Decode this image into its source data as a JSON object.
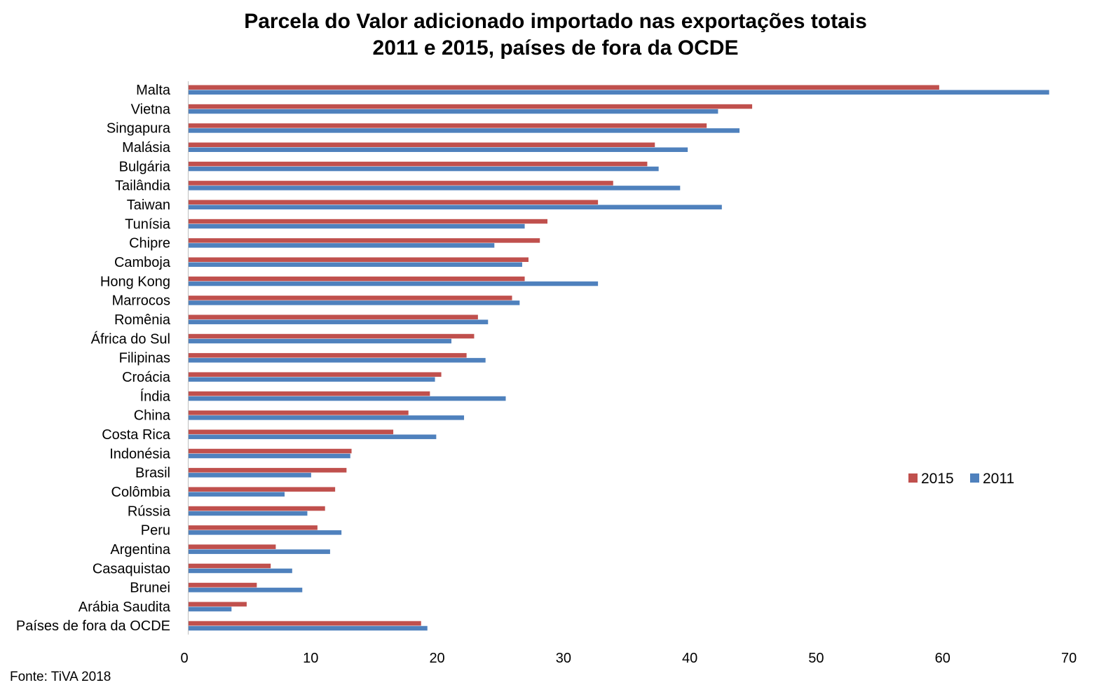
{
  "chart_data": {
    "type": "bar",
    "orientation": "horizontal",
    "title": "Parcela do Valor adicionado importado nas exportações totais",
    "subtitle": "2011 e 2015, países de fora da OCDE",
    "categories": [
      "Malta",
      "Vietna",
      "Singapura",
      "Malásia",
      "Bulgária",
      "Tailândia",
      "Taiwan",
      "Tunísia",
      "Chipre",
      "Camboja",
      "Hong Kong",
      "Marrocos",
      "Romênia",
      "África do Sul",
      "Filipinas",
      "Croácia",
      "Índia",
      "China",
      "Costa Rica",
      "Indonésia",
      "Brasil",
      "Colômbia",
      "Rússia",
      "Peru",
      "Argentina",
      "Casaquistao",
      "Brunei",
      "Arábia Saudita",
      "Países de fora da OCDE"
    ],
    "series": [
      {
        "name": "2015",
        "color": "#c0504d",
        "values": [
          59.4,
          44.6,
          41.0,
          36.9,
          36.3,
          33.6,
          32.4,
          28.4,
          27.8,
          26.9,
          26.6,
          25.6,
          22.9,
          22.6,
          22.0,
          20.0,
          19.1,
          17.4,
          16.2,
          12.9,
          12.5,
          11.6,
          10.8,
          10.2,
          6.9,
          6.5,
          5.4,
          4.6,
          18.4
        ]
      },
      {
        "name": "2011",
        "color": "#4f81bd",
        "values": [
          68.1,
          41.9,
          43.6,
          39.5,
          37.2,
          38.9,
          42.2,
          26.6,
          24.2,
          26.4,
          32.4,
          26.2,
          23.7,
          20.8,
          23.5,
          19.5,
          25.1,
          21.8,
          19.6,
          12.8,
          9.7,
          7.6,
          9.4,
          12.1,
          11.2,
          8.2,
          9.0,
          3.4,
          18.9
        ]
      }
    ],
    "xlim": [
      0,
      70
    ],
    "xticks": [
      "0",
      "10",
      "20",
      "30",
      "40",
      "50",
      "60",
      "70"
    ],
    "grid": false,
    "legend_position": "right"
  },
  "source_note": "Fonte: TiVA 2018"
}
